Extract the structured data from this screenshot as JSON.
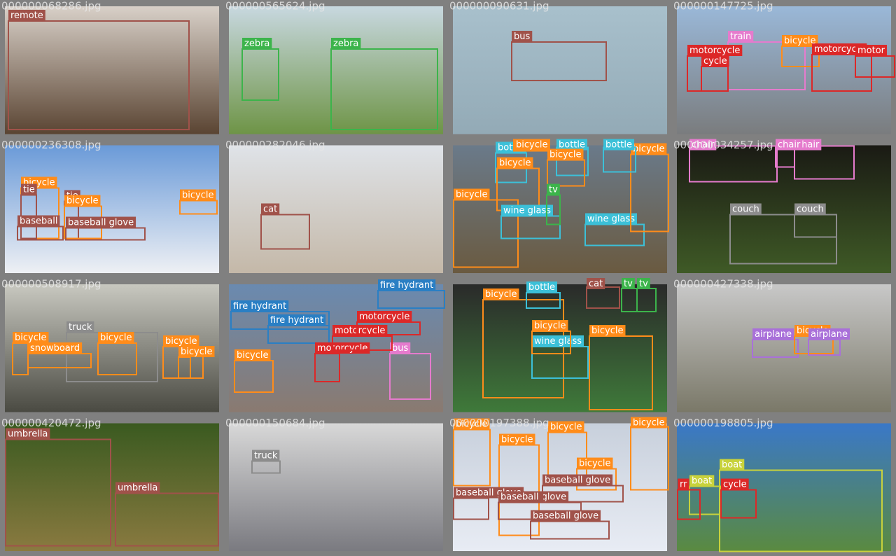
{
  "tiles": [
    {
      "file": "000000068286.jpg",
      "detections": [
        {
          "label": "remote",
          "color": "#a0524a"
        }
      ]
    },
    {
      "file": "000000565624.jpg",
      "detections": [
        {
          "label": "zebra",
          "color": "#3cb44b"
        },
        {
          "label": "zebra",
          "color": "#3cb44b"
        }
      ]
    },
    {
      "file": "000000090631.jpg",
      "detections": [
        {
          "label": "bus",
          "color": "#a0524a"
        }
      ]
    },
    {
      "file": "000000147725.jpg",
      "detections": [
        {
          "label": "train",
          "color": "#e57bcd"
        },
        {
          "label": "motorcycle",
          "color": "#dc2828"
        },
        {
          "label": "cycle",
          "color": "#dc2828"
        },
        {
          "label": "bicycle",
          "color": "#ff8c1a"
        },
        {
          "label": "motorcycle",
          "color": "#dc2828"
        },
        {
          "label": "motor",
          "color": "#dc2828"
        }
      ]
    },
    {
      "file": "000000236308.jpg",
      "detections": [
        {
          "label": "bicycle",
          "color": "#ff8c1a"
        },
        {
          "label": "tie",
          "color": "#a0524a"
        },
        {
          "label": "tie",
          "color": "#a0524a"
        },
        {
          "label": "bicycle",
          "color": "#ff8c1a"
        },
        {
          "label": "baseball",
          "color": "#a0524a"
        },
        {
          "label": "baseball glove",
          "color": "#a0524a"
        },
        {
          "label": "bicycle",
          "color": "#ff8c1a"
        }
      ]
    },
    {
      "file": "000000282046.jpg",
      "detections": [
        {
          "label": "cat",
          "color": "#a0524a"
        }
      ]
    },
    {
      "file": null,
      "detections": [
        {
          "label": "bicycle",
          "color": "#ff8c1a"
        },
        {
          "label": "bottle",
          "color": "#3cc0d8"
        },
        {
          "label": "bicycle",
          "color": "#ff8c1a"
        },
        {
          "label": "bottle",
          "color": "#3cc0d8"
        },
        {
          "label": "bicycle",
          "color": "#ff8c1a"
        },
        {
          "label": "wine glass",
          "color": "#3cc0d8"
        },
        {
          "label": "wine glass",
          "color": "#3cc0d8"
        },
        {
          "label": "bicycle",
          "color": "#ff8c1a"
        },
        {
          "label": "tv",
          "color": "#3cb44b"
        },
        {
          "label": "bottle",
          "color": "#3cc0d8"
        },
        {
          "label": "bicycle",
          "color": "#ff8c1a"
        }
      ]
    },
    {
      "file": "000000034257.jpg",
      "detections": [
        {
          "label": "chair",
          "color": "#e57bcd"
        },
        {
          "label": "chair",
          "color": "#e57bcd"
        },
        {
          "label": "chair",
          "color": "#e57bcd"
        },
        {
          "label": "couch",
          "color": "#8c8c8c"
        },
        {
          "label": "couch",
          "color": "#8c8c8c"
        }
      ]
    },
    {
      "file": "000000508917.jpg",
      "detections": [
        {
          "label": "truck",
          "color": "#8c8c8c"
        },
        {
          "label": "bicycle",
          "color": "#ff8c1a"
        },
        {
          "label": "bicycle",
          "color": "#ff8c1a"
        },
        {
          "label": "snowboard",
          "color": "#ff8c1a"
        },
        {
          "label": "bicycle",
          "color": "#ff8c1a"
        },
        {
          "label": "bicycle",
          "color": "#ff8c1a"
        }
      ]
    },
    {
      "file": null,
      "detections": [
        {
          "label": "fire hydrant",
          "color": "#2a7fc4"
        },
        {
          "label": "fire hydrant",
          "color": "#2a7fc4"
        },
        {
          "label": "motorcycle",
          "color": "#dc2828"
        },
        {
          "label": "bicycle",
          "color": "#ff8c1a"
        },
        {
          "label": "bus",
          "color": "#e57bcd"
        },
        {
          "label": "fire hydrant",
          "color": "#2a7fc4"
        },
        {
          "label": "motorcycle",
          "color": "#dc2828"
        },
        {
          "label": "motorcycle",
          "color": "#dc2828"
        }
      ]
    },
    {
      "file": null,
      "detections": [
        {
          "label": "bicycle",
          "color": "#ff8c1a"
        },
        {
          "label": "bicycle",
          "color": "#ff8c1a"
        },
        {
          "label": "wine glass",
          "color": "#3cc0d8"
        },
        {
          "label": "bottle",
          "color": "#3cc0d8"
        },
        {
          "label": "cat",
          "color": "#a0524a"
        },
        {
          "label": "tv",
          "color": "#3cb44b"
        },
        {
          "label": "tv",
          "color": "#3cb44b"
        },
        {
          "label": "bicycle",
          "color": "#ff8c1a"
        }
      ]
    },
    {
      "file": "000000427338.jpg",
      "detections": [
        {
          "label": "airplane",
          "color": "#a970d9"
        },
        {
          "label": "bicycle",
          "color": "#ff8c1a"
        },
        {
          "label": "airplane",
          "color": "#a970d9"
        }
      ]
    },
    {
      "file": "000000420472.jpg",
      "detections": [
        {
          "label": "umbrella",
          "color": "#a0524a"
        },
        {
          "label": "umbrella",
          "color": "#a0524a"
        }
      ]
    },
    {
      "file": "000000150684.jpg",
      "detections": [
        {
          "label": "truck",
          "color": "#8c8c8c"
        }
      ]
    },
    {
      "file": "000000197388.jpg",
      "detections": [
        {
          "label": "bicycle",
          "color": "#ff8c1a"
        },
        {
          "label": "bicycle",
          "color": "#ff8c1a"
        },
        {
          "label": "bicycle",
          "color": "#ff8c1a"
        },
        {
          "label": "bicycle",
          "color": "#ff8c1a"
        },
        {
          "label": "bicycle",
          "color": "#ff8c1a"
        },
        {
          "label": "baseball glove",
          "color": "#a0524a"
        },
        {
          "label": "baseball glove",
          "color": "#a0524a"
        },
        {
          "label": "baseball glove",
          "color": "#a0524a"
        },
        {
          "label": "baseball glove",
          "color": "#a0524a"
        }
      ]
    },
    {
      "file": "000000198805.jpg",
      "detections": [
        {
          "label": "boat",
          "color": "#c8d23c"
        },
        {
          "label": "boat",
          "color": "#c8d23c"
        },
        {
          "label": "cycle",
          "color": "#dc2828"
        },
        {
          "label": "rr",
          "color": "#dc2828"
        }
      ]
    }
  ]
}
